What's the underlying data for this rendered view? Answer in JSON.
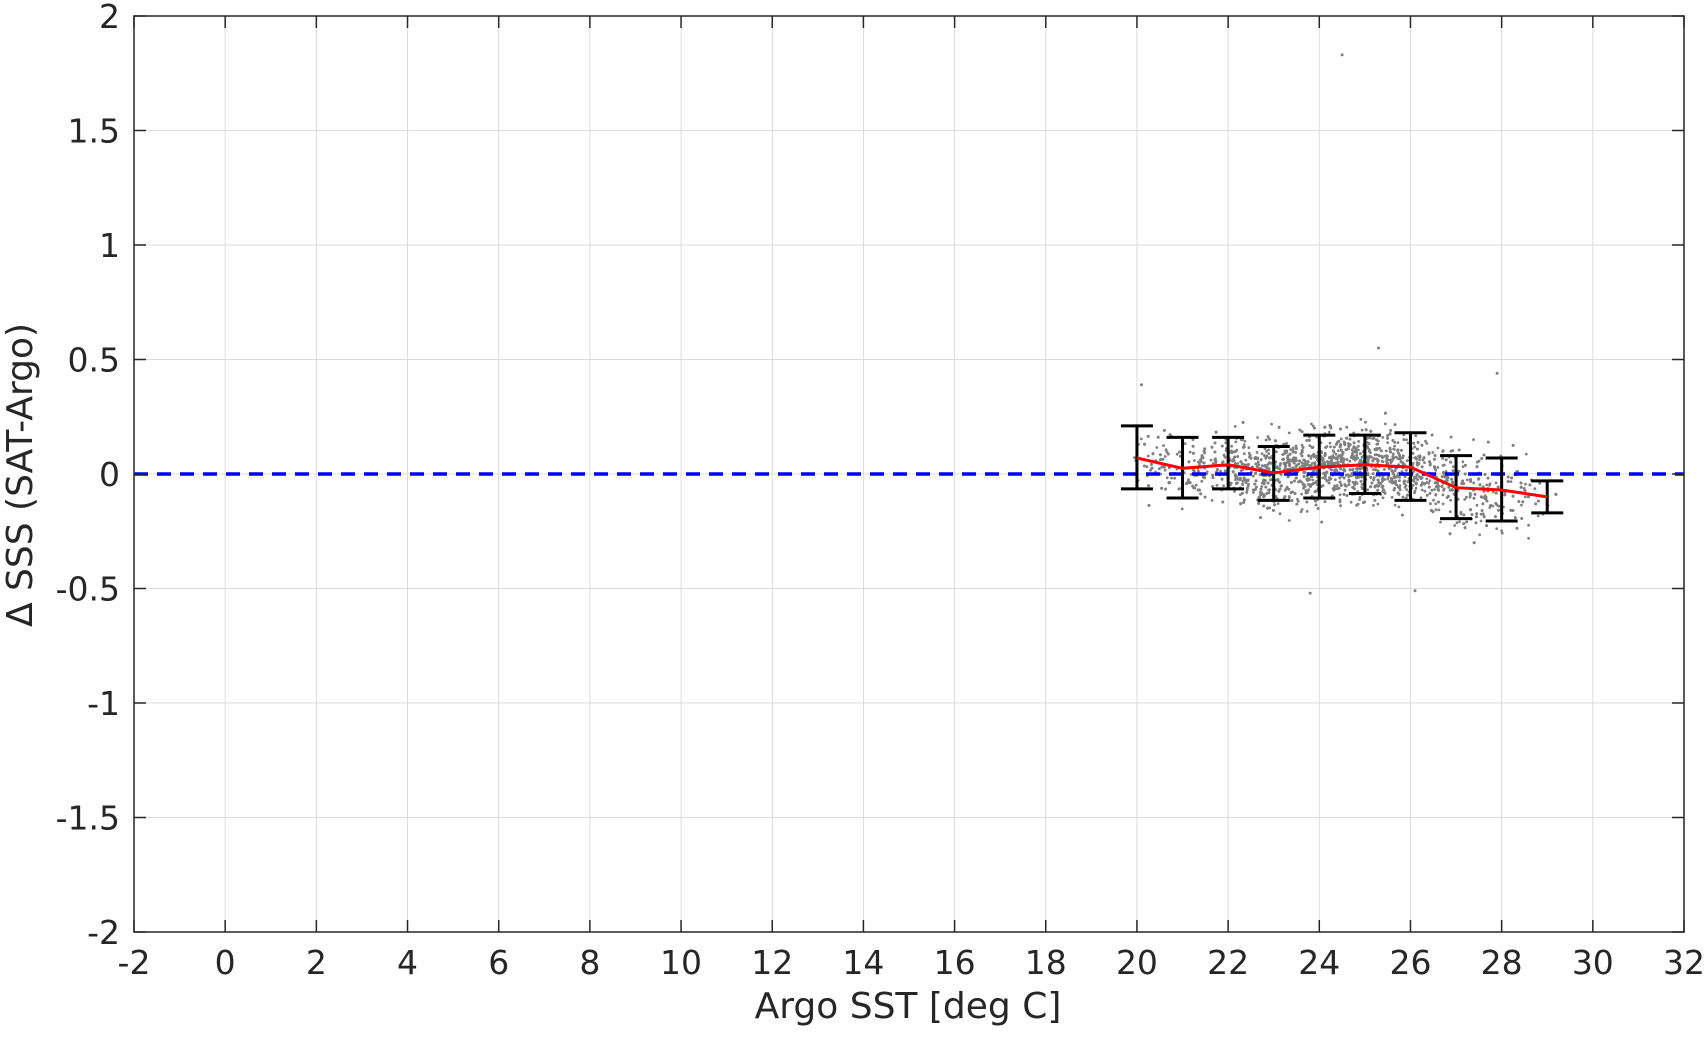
{
  "chart_data": {
    "type": "scatter",
    "title": "",
    "xlabel": "Argo SST [deg C]",
    "ylabel": "Δ SSS (SAT-Argo)",
    "xlim": [
      -2,
      32
    ],
    "ylim": [
      -2,
      2
    ],
    "x_ticks": [
      "-2",
      "0",
      "2",
      "4",
      "6",
      "8",
      "10",
      "12",
      "14",
      "16",
      "18",
      "20",
      "22",
      "24",
      "26",
      "28",
      "30",
      "32"
    ],
    "y_ticks": [
      "2",
      "1.5",
      "1",
      "0.5",
      "0",
      "-0.5",
      "-1",
      "-1.5",
      "-2"
    ],
    "grid": true,
    "legend": "none",
    "zero_line": {
      "y": 0,
      "color": "#0000ff",
      "style": "dashed"
    },
    "scatter_color": "#808080",
    "scatter_cloud": {
      "x_range": [
        19.8,
        29.2
      ],
      "y_center_approx": 0.0,
      "y_spread_approx": 0.15,
      "outlier_points": [
        [
          24.5,
          1.83
        ],
        [
          25.3,
          0.55
        ],
        [
          20.1,
          0.39
        ],
        [
          26.1,
          -0.51
        ],
        [
          23.8,
          -0.52
        ],
        [
          27.9,
          0.44
        ]
      ]
    },
    "binned_mean": {
      "color": "#ff0000",
      "x": [
        20,
        21,
        22,
        23,
        24,
        25,
        26,
        27,
        28,
        29
      ],
      "y": [
        0.07,
        0.025,
        0.04,
        0.005,
        0.03,
        0.04,
        0.03,
        -0.06,
        -0.07,
        -0.1
      ]
    },
    "error_bars": {
      "color": "#000000",
      "x": [
        20,
        21,
        22,
        23,
        24,
        25,
        26,
        27,
        28,
        29
      ],
      "upper": [
        0.21,
        0.16,
        0.16,
        0.12,
        0.17,
        0.17,
        0.18,
        0.08,
        0.07,
        -0.03
      ],
      "lower": [
        -0.065,
        -0.105,
        -0.065,
        -0.115,
        -0.105,
        -0.085,
        -0.115,
        -0.195,
        -0.205,
        -0.17
      ]
    }
  }
}
